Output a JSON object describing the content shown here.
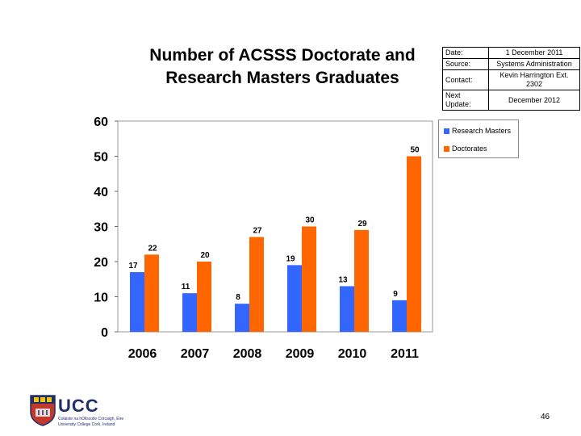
{
  "title_lines": [
    "Number of ACSSS Doctorate and",
    "Research Masters Graduates"
  ],
  "info_table": [
    {
      "label": "Date:",
      "value": "1 December 2011"
    },
    {
      "label": "Source:",
      "value": "Systems Administration"
    },
    {
      "label": "Contact:",
      "value": "Kevin Harrington Ext. 2302"
    },
    {
      "label": "Next Update:",
      "value": "December 2012"
    }
  ],
  "logo": {
    "text": "UCC",
    "sub1": "Coláiste na hOllscoile Corcaigh, Éire",
    "sub2": "University College Cork, Ireland"
  },
  "page_number": "46",
  "colors": {
    "research_masters": "#3366ff",
    "doctorates": "#ff6600"
  },
  "chart_data": {
    "type": "bar",
    "categories": [
      "2006",
      "2007",
      "2008",
      "2009",
      "2010",
      "2011"
    ],
    "series": [
      {
        "name": "Research Masters",
        "values": [
          17,
          11,
          8,
          19,
          13,
          9
        ]
      },
      {
        "name": "Doctorates",
        "values": [
          22,
          20,
          27,
          30,
          29,
          50
        ]
      }
    ],
    "ylim": [
      0,
      60
    ],
    "yticks": [
      0,
      10,
      20,
      30,
      40,
      50,
      60
    ],
    "legend_position": "right",
    "grid": false
  }
}
